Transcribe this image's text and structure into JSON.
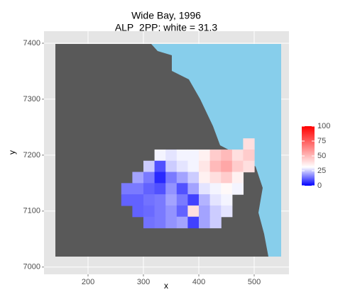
{
  "chart_data": {
    "type": "heatmap",
    "title": "Wide Bay, 1996",
    "subtitle": "ALP_2PP; white = 31.3",
    "x_label": "x",
    "y_label": "y",
    "x": [
      270,
      290,
      310,
      330,
      350,
      370,
      390,
      410,
      430,
      450,
      470,
      490
    ],
    "y": [
      7220,
      7200,
      7180,
      7160,
      7140,
      7120,
      7100,
      7080
    ],
    "values": [
      [
        null,
        null,
        null,
        null,
        null,
        null,
        null,
        null,
        null,
        null,
        null,
        40
      ],
      [
        null,
        null,
        null,
        30,
        28,
        30,
        30,
        35,
        45,
        50,
        40,
        45
      ],
      [
        null,
        null,
        25,
        10,
        25,
        28,
        30,
        38,
        50,
        55,
        45,
        40
      ],
      [
        null,
        20,
        15,
        5,
        15,
        20,
        25,
        35,
        40,
        45,
        35,
        null
      ],
      [
        15,
        15,
        12,
        10,
        18,
        10,
        20,
        28,
        30,
        33,
        30,
        null
      ],
      [
        12,
        12,
        14,
        15,
        20,
        15,
        8,
        22,
        28,
        30,
        null,
        null
      ],
      [
        null,
        12,
        13,
        15,
        18,
        12,
        40,
        20,
        25,
        28,
        null,
        null
      ],
      [
        null,
        null,
        14,
        15,
        18,
        20,
        8,
        20,
        25,
        null,
        null,
        null
      ]
    ],
    "cell_size": 20,
    "xlim": [
      120.5,
      562.8
    ],
    "xticks": [
      200,
      300,
      400,
      500
    ],
    "ylim": [
      6987,
      7421.5
    ],
    "yticks": [
      7000,
      7100,
      7200,
      7300,
      7400
    ],
    "grid": true,
    "color_low": "#0000ff",
    "color_mid": "#ffffff",
    "color_high": "#ff0000",
    "midpoint": 31.3,
    "clim": [
      0,
      100
    ],
    "cticks": [
      0,
      25,
      50,
      75,
      100
    ]
  }
}
